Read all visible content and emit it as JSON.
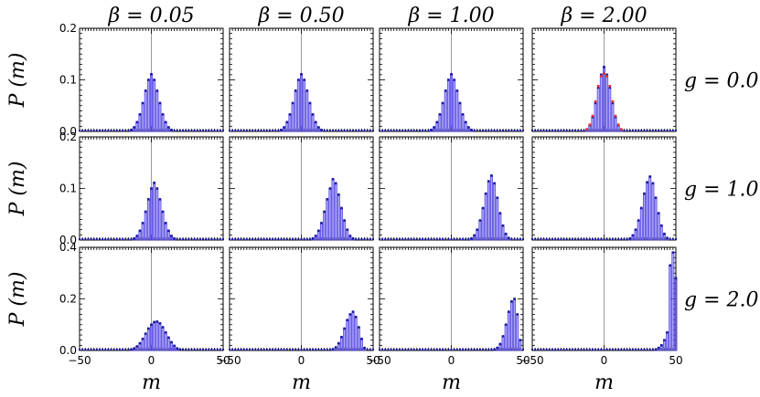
{
  "chart_data": {
    "type": "bar",
    "grid_layout": {
      "rows": 3,
      "cols": 4
    },
    "columns": [
      "β = 0.05",
      "β = 0.50",
      "β = 1.00",
      "β = 2.00"
    ],
    "rows": [
      "g = 0.0",
      "g = 1.0",
      "g = 2.0"
    ],
    "ylabel": "P (m)",
    "xlabel": "m",
    "xlim": [
      -50,
      50
    ],
    "xticks": [
      "−50",
      "0",
      "50"
    ],
    "row_ylims": [
      [
        0,
        0.2
      ],
      [
        0,
        0.2
      ],
      [
        0,
        0.4
      ]
    ],
    "row_yticks": [
      [
        "0.0",
        "0.1",
        "0.2"
      ],
      [
        "0.0",
        "0.1",
        "0.2"
      ],
      [
        "0.0",
        "0.2",
        "0.4"
      ]
    ],
    "vertical_reference_line_at": 0,
    "bar_color": "#7b6cf0",
    "marker_color": "#1a1a9e",
    "overlay_marker_color": "#e0302a",
    "panels": [
      {
        "row": 0,
        "col": 0,
        "x": [
          -14,
          -12,
          -10,
          -8,
          -6,
          -4,
          -2,
          0,
          2,
          4,
          6,
          8,
          10,
          12,
          14
        ],
        "values": [
          0.003,
          0.008,
          0.018,
          0.033,
          0.055,
          0.079,
          0.1,
          0.111,
          0.1,
          0.079,
          0.055,
          0.033,
          0.018,
          0.008,
          0.003
        ]
      },
      {
        "row": 0,
        "col": 1,
        "x": [
          -14,
          -12,
          -10,
          -8,
          -6,
          -4,
          -2,
          0,
          2,
          4,
          6,
          8,
          10,
          12,
          14
        ],
        "values": [
          0.003,
          0.008,
          0.018,
          0.033,
          0.055,
          0.079,
          0.1,
          0.111,
          0.1,
          0.079,
          0.055,
          0.033,
          0.018,
          0.008,
          0.003
        ]
      },
      {
        "row": 0,
        "col": 2,
        "x": [
          -14,
          -12,
          -10,
          -8,
          -6,
          -4,
          -2,
          0,
          2,
          4,
          6,
          8,
          10,
          12,
          14
        ],
        "values": [
          0.003,
          0.008,
          0.018,
          0.033,
          0.055,
          0.079,
          0.1,
          0.111,
          0.1,
          0.079,
          0.055,
          0.033,
          0.018,
          0.008,
          0.003
        ]
      },
      {
        "row": 0,
        "col": 3,
        "x": [
          -12,
          -10,
          -8,
          -6,
          -4,
          -2,
          0,
          2,
          4,
          6,
          8,
          10,
          12
        ],
        "values": [
          0.004,
          0.012,
          0.028,
          0.055,
          0.085,
          0.11,
          0.125,
          0.11,
          0.085,
          0.055,
          0.028,
          0.012,
          0.004
        ],
        "overlay": [
          0.004,
          0.013,
          0.03,
          0.058,
          0.088,
          0.107,
          0.112,
          0.107,
          0.088,
          0.058,
          0.03,
          0.013,
          0.004
        ]
      },
      {
        "row": 1,
        "col": 0,
        "x": [
          -12,
          -10,
          -8,
          -6,
          -4,
          -2,
          0,
          2,
          4,
          6,
          8,
          10,
          12,
          14,
          16
        ],
        "values": [
          0.003,
          0.008,
          0.018,
          0.033,
          0.055,
          0.079,
          0.1,
          0.111,
          0.1,
          0.079,
          0.055,
          0.033,
          0.018,
          0.008,
          0.003
        ]
      },
      {
        "row": 1,
        "col": 1,
        "x": [
          8,
          10,
          12,
          14,
          16,
          18,
          20,
          22,
          24,
          26,
          28,
          30,
          32,
          34,
          36
        ],
        "values": [
          0.003,
          0.008,
          0.018,
          0.033,
          0.055,
          0.079,
          0.1,
          0.118,
          0.11,
          0.088,
          0.062,
          0.038,
          0.02,
          0.008,
          0.003
        ]
      },
      {
        "row": 1,
        "col": 2,
        "x": [
          14,
          16,
          18,
          20,
          22,
          24,
          26,
          28,
          30,
          32,
          34,
          36,
          38,
          40
        ],
        "values": [
          0.003,
          0.009,
          0.02,
          0.038,
          0.062,
          0.09,
          0.114,
          0.125,
          0.11,
          0.082,
          0.052,
          0.028,
          0.012,
          0.004
        ]
      },
      {
        "row": 1,
        "col": 3,
        "x": [
          18,
          20,
          22,
          24,
          26,
          28,
          30,
          32,
          34,
          36,
          38,
          40,
          42,
          44
        ],
        "values": [
          0.003,
          0.009,
          0.02,
          0.038,
          0.062,
          0.09,
          0.112,
          0.123,
          0.11,
          0.082,
          0.052,
          0.028,
          0.012,
          0.004
        ]
      },
      {
        "row": 2,
        "col": 0,
        "x": [
          -14,
          -12,
          -10,
          -8,
          -6,
          -4,
          -2,
          0,
          2,
          4,
          6,
          8,
          10,
          12,
          14,
          16,
          18,
          20
        ],
        "values": [
          0.003,
          0.008,
          0.016,
          0.028,
          0.045,
          0.065,
          0.085,
          0.1,
          0.11,
          0.112,
          0.105,
          0.09,
          0.07,
          0.05,
          0.032,
          0.018,
          0.008,
          0.003
        ]
      },
      {
        "row": 2,
        "col": 1,
        "x": [
          22,
          24,
          26,
          28,
          30,
          32,
          34,
          36,
          38,
          40,
          42,
          44
        ],
        "values": [
          0.004,
          0.012,
          0.028,
          0.052,
          0.085,
          0.118,
          0.14,
          0.15,
          0.13,
          0.09,
          0.045,
          0.01
        ]
      },
      {
        "row": 2,
        "col": 2,
        "x": [
          30,
          32,
          34,
          36,
          38,
          40,
          42,
          44,
          46,
          48
        ],
        "values": [
          0.003,
          0.01,
          0.025,
          0.055,
          0.1,
          0.15,
          0.19,
          0.2,
          0.14,
          0.04
        ]
      },
      {
        "row": 2,
        "col": 3,
        "x": [
          36,
          38,
          40,
          42,
          44,
          46,
          48,
          50
        ],
        "values": [
          0.003,
          0.01,
          0.02,
          0.04,
          0.07,
          0.33,
          0.38,
          0.28
        ]
      }
    ]
  }
}
